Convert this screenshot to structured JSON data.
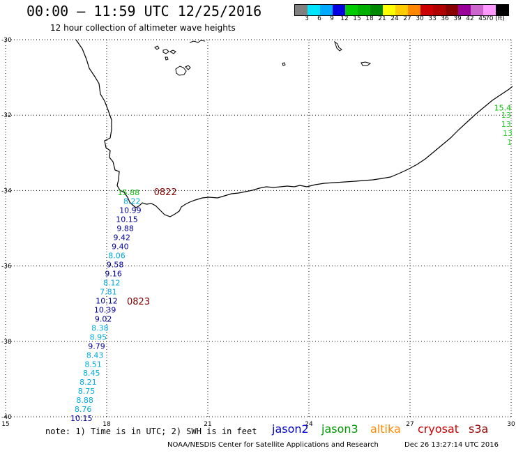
{
  "header": {
    "title": "00:00 – 11:59 UTC 12/25/2016",
    "subtitle": "12 hour collection of altimeter wave heights"
  },
  "colorbar": {
    "colors": [
      "#808080",
      "#00e5ff",
      "#00aaff",
      "#0000e0",
      "#00cc00",
      "#00b000",
      "#008800",
      "#ffff00",
      "#ffcc00",
      "#ff8800",
      "#cc0000",
      "#b00000",
      "#880000",
      "#990099",
      "#cc66cc",
      "#ff99ff",
      "#000000"
    ],
    "labels": [
      "3",
      "6",
      "9",
      "12",
      "15",
      "18",
      "21",
      "24",
      "27",
      "30",
      "33",
      "36",
      "39",
      "42",
      "45",
      "70 (ft)"
    ]
  },
  "map": {
    "lon_range": [
      15,
      30
    ],
    "lat_range": [
      -30,
      -40
    ],
    "lon_ticks": [
      "15",
      "18",
      "21",
      "24",
      "27",
      "30"
    ],
    "lat_ticks": [
      "-30",
      "-32",
      "-34",
      "-36",
      "-38",
      "-40"
    ],
    "grid": "dotted",
    "coastline_color": "#000000"
  },
  "time_labels": [
    {
      "text": "0822",
      "lon": 19.4,
      "lat": -34.05
    },
    {
      "text": "0823",
      "lon": 18.6,
      "lat": -36.95
    }
  ],
  "observations": [
    {
      "value": "15.88",
      "lon": 18.65,
      "lat": -34.05,
      "color": "#00bb00"
    },
    {
      "value": "8.22",
      "lon": 18.75,
      "lat": -34.28,
      "color": "#00aadd"
    },
    {
      "value": "10.99",
      "lon": 18.7,
      "lat": -34.52,
      "color": "#000099"
    },
    {
      "value": "10.15",
      "lon": 18.6,
      "lat": -34.76,
      "color": "#000099"
    },
    {
      "value": "9.88",
      "lon": 18.55,
      "lat": -35.0,
      "color": "#000099"
    },
    {
      "value": "9.42",
      "lon": 18.45,
      "lat": -35.24,
      "color": "#000099"
    },
    {
      "value": "9.40",
      "lon": 18.4,
      "lat": -35.48,
      "color": "#000099"
    },
    {
      "value": "8.06",
      "lon": 18.3,
      "lat": -35.72,
      "color": "#00aadd"
    },
    {
      "value": "9.58",
      "lon": 18.25,
      "lat": -35.96,
      "color": "#000099"
    },
    {
      "value": "9.16",
      "lon": 18.2,
      "lat": -36.2,
      "color": "#000099"
    },
    {
      "value": "8.12",
      "lon": 18.15,
      "lat": -36.44,
      "color": "#00aadd"
    },
    {
      "value": "7.81",
      "lon": 18.05,
      "lat": -36.68,
      "color": "#00aadd"
    },
    {
      "value": "10.12",
      "lon": 18.0,
      "lat": -36.92,
      "color": "#000099"
    },
    {
      "value": "10.39",
      "lon": 17.95,
      "lat": -37.16,
      "color": "#000099"
    },
    {
      "value": "9.02",
      "lon": 17.9,
      "lat": -37.4,
      "color": "#000099"
    },
    {
      "value": "8.38",
      "lon": 17.8,
      "lat": -37.64,
      "color": "#00aadd"
    },
    {
      "value": "8.95",
      "lon": 17.75,
      "lat": -37.88,
      "color": "#00aadd"
    },
    {
      "value": "9.79",
      "lon": 17.7,
      "lat": -38.12,
      "color": "#000099"
    },
    {
      "value": "8.43",
      "lon": 17.65,
      "lat": -38.36,
      "color": "#00aadd"
    },
    {
      "value": "8.51",
      "lon": 17.6,
      "lat": -38.6,
      "color": "#00aadd"
    },
    {
      "value": "8.45",
      "lon": 17.55,
      "lat": -38.84,
      "color": "#00aadd"
    },
    {
      "value": "8.21",
      "lon": 17.45,
      "lat": -39.08,
      "color": "#00aadd"
    },
    {
      "value": "8.75",
      "lon": 17.4,
      "lat": -39.32,
      "color": "#00aadd"
    },
    {
      "value": "8.88",
      "lon": 17.35,
      "lat": -39.56,
      "color": "#00aadd"
    },
    {
      "value": "8.76",
      "lon": 17.3,
      "lat": -39.8,
      "color": "#00aadd"
    },
    {
      "value": "10.15",
      "lon": 17.25,
      "lat": -40.04,
      "color": "#000099"
    },
    {
      "value": "15.4",
      "lon": 29.75,
      "lat": -31.8,
      "color": "#00bb00"
    },
    {
      "value": "13",
      "lon": 29.85,
      "lat": -32.0,
      "color": "#33cc33"
    },
    {
      "value": "13",
      "lon": 29.85,
      "lat": -32.24,
      "color": "#33cc33"
    },
    {
      "value": "13",
      "lon": 29.9,
      "lat": -32.48,
      "color": "#33cc33"
    },
    {
      "value": "1",
      "lon": 29.95,
      "lat": -32.72,
      "color": "#33cc33"
    }
  ],
  "footer": {
    "note": "note: 1) Time is in UTC; 2) SWH is in feet",
    "legend": [
      {
        "text": "jason2",
        "color": "#0000cc"
      },
      {
        "text": "jason3",
        "color": "#009900"
      },
      {
        "text": "altika",
        "color": "#ff8800"
      },
      {
        "text": "cryosat",
        "color": "#cc0000"
      },
      {
        "text": "s3a",
        "color": "#990000"
      }
    ],
    "credit": "NOAA/NESDIS Center for Satellite Applications and Research",
    "timestamp": "Dec 26 13:27:14 UTC 2016"
  }
}
